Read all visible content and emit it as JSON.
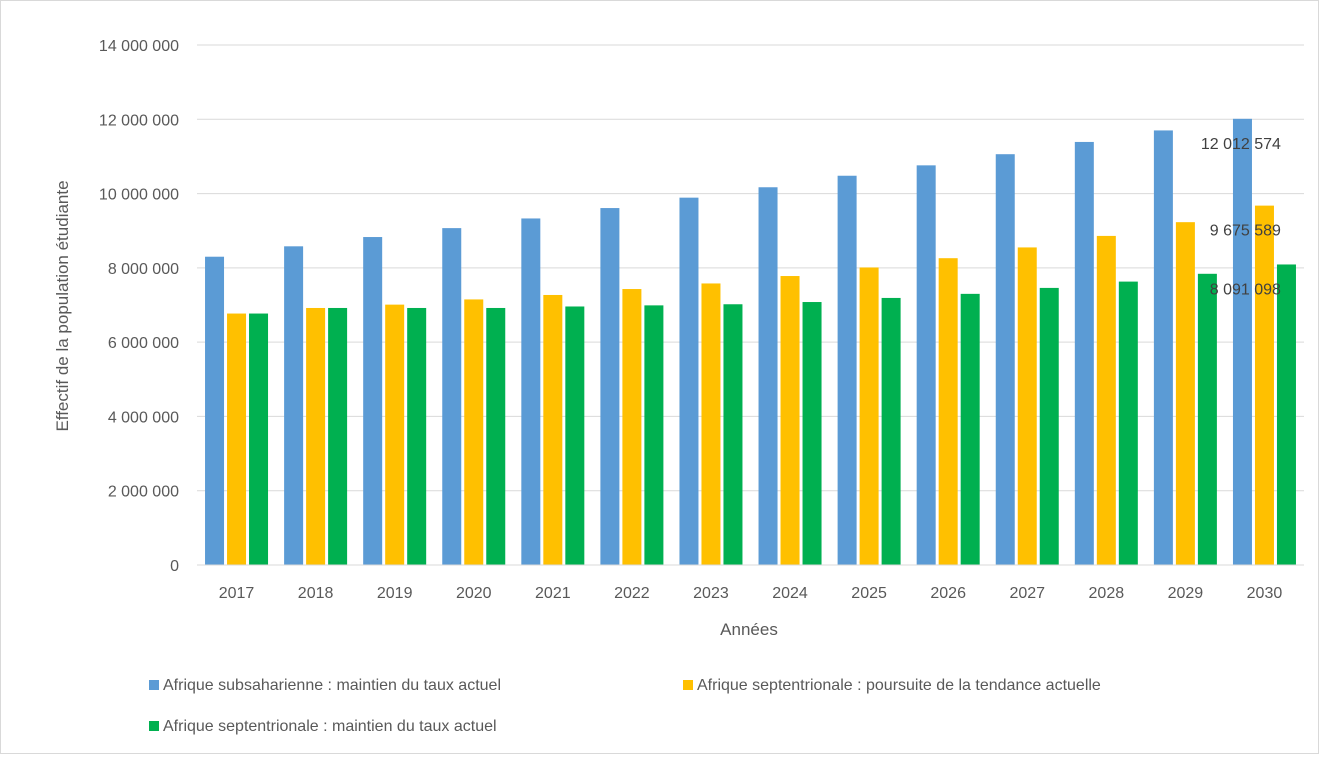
{
  "chart_data": {
    "type": "bar",
    "title": "",
    "xlabel": "Années",
    "ylabel": "Effectif de la population étudiante",
    "ylim": [
      0,
      14000000
    ],
    "yticks": [
      "0",
      "2 000 000",
      "4 000 000",
      "6 000 000",
      "8 000 000",
      "10 000 000",
      "12 000 000",
      "14 000 000"
    ],
    "grid": true,
    "legend_position": "bottom",
    "categories": [
      "2017",
      "2018",
      "2019",
      "2020",
      "2021",
      "2022",
      "2023",
      "2024",
      "2025",
      "2026",
      "2027",
      "2028",
      "2029",
      "2030"
    ],
    "series": [
      {
        "name": "Afrique subsaharienne : maintien du taux actuel",
        "color": "#5b9bd5",
        "values": [
          8300000,
          8580000,
          8830000,
          9070000,
          9330000,
          9610000,
          9890000,
          10170000,
          10480000,
          10760000,
          11060000,
          11390000,
          11700000,
          12012574
        ],
        "last_label": "12 012 574"
      },
      {
        "name": "Afrique septentrionale : poursuite de la tendance actuelle",
        "color": "#ffc000",
        "values": [
          6770000,
          6920000,
          7010000,
          7150000,
          7270000,
          7430000,
          7580000,
          7780000,
          8010000,
          8260000,
          8550000,
          8860000,
          9230000,
          9675589
        ],
        "last_label": "9 675 589"
      },
      {
        "name": "Afrique septentrionale : maintien du taux actuel",
        "color": "#00b050",
        "values": [
          6770000,
          6920000,
          6920000,
          6920000,
          6960000,
          6990000,
          7020000,
          7080000,
          7190000,
          7300000,
          7460000,
          7630000,
          7840000,
          8091098
        ],
        "last_label": "8 091 098"
      }
    ]
  }
}
